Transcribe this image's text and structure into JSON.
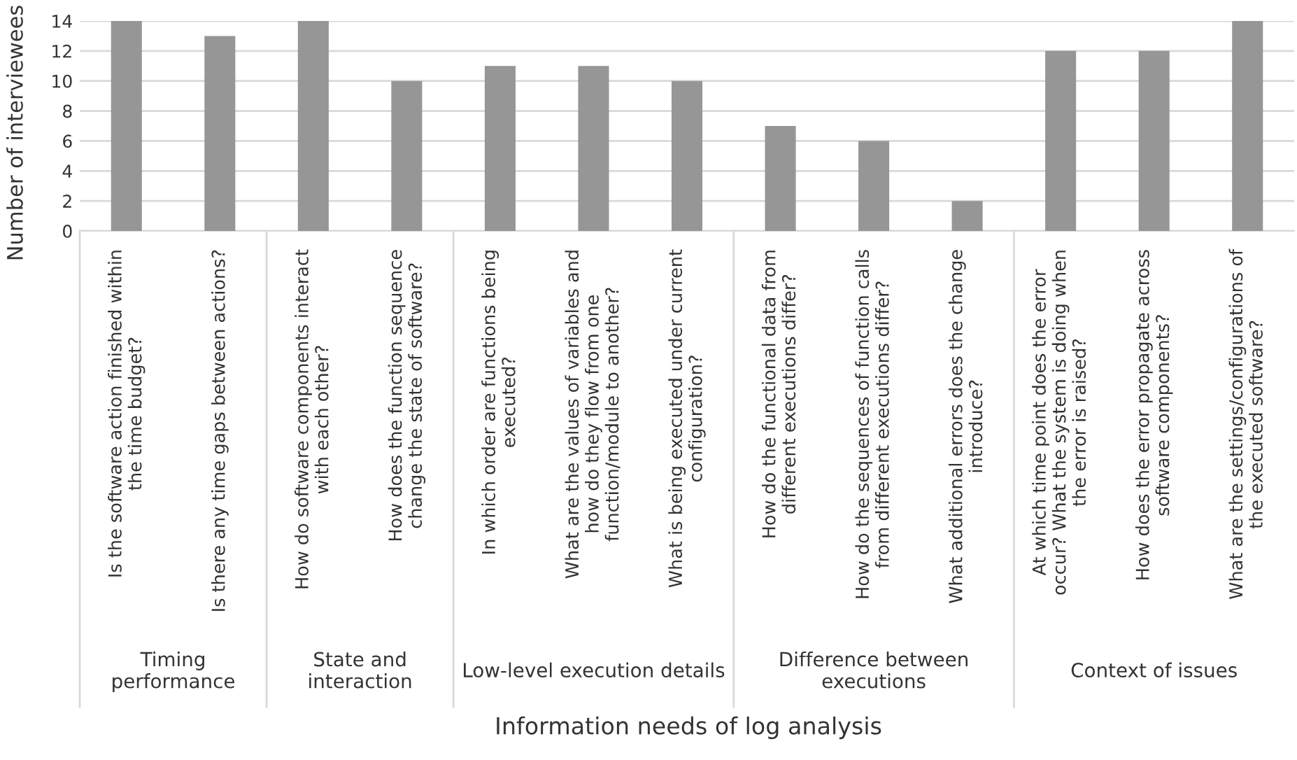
{
  "chart_data": {
    "type": "bar",
    "xlabel": "Information needs of log analysis",
    "ylabel": "Number of interviewees",
    "categories": [
      "Is the software action finished within\nthe time budget?",
      "Is there any time gaps between actions?",
      "How do software components interact\nwith each other?",
      "How does the function sequence\nchange the state of software?",
      "In which order are functions being\nexecuted?",
      "What are the values of variables and\nhow do they flow from one\nfunction/module to another?",
      "What is being executed under current\nconfiguration?",
      "How do the functional data from\ndifferent executions differ?",
      "How do the sequences of function calls\nfrom different executions differ?",
      "What additional errors does the change\nintroduce?",
      "At which time point does the error\noccur? What the system is doing when\nthe error is raised?",
      "How does the error propagate across\nsoftware components?",
      "What are the settings/configurations of\nthe executed software?"
    ],
    "values": [
      14,
      13,
      14,
      10,
      11,
      11,
      10,
      7,
      6,
      2,
      12,
      12,
      14
    ],
    "color": "#969696",
    "ylim": [
      0,
      14
    ],
    "yticks": [
      0,
      2,
      4,
      6,
      8,
      10,
      12,
      14
    ],
    "grid": "y",
    "annotations": [
      "Timing\nperformance",
      "State and\ninteraction",
      "Low-level execution details",
      "Difference between\nexecutions",
      "Context of issues"
    ]
  }
}
